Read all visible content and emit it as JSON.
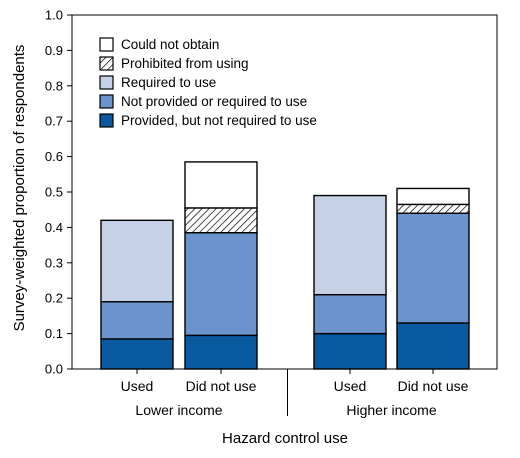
{
  "chart_data": {
    "type": "bar",
    "stacked": true,
    "xlabel": "Hazard control use",
    "ylabel": "Survey-weighted proportion of respondents",
    "ylim": [
      0,
      1.0
    ],
    "yticks": [
      "0.0",
      "0.1",
      "0.2",
      "0.3",
      "0.4",
      "0.5",
      "0.6",
      "0.7",
      "0.8",
      "0.9",
      "1.0"
    ],
    "groups": [
      "Lower income",
      "Higher income"
    ],
    "categories": [
      "Used",
      "Did not use",
      "Used",
      "Did not use"
    ],
    "series": [
      {
        "name": "Provided, but not required to use",
        "color": "#0a5aa0",
        "pattern": "solid",
        "values": [
          0.085,
          0.095,
          0.1,
          0.13
        ]
      },
      {
        "name": "Not provided or required to use",
        "color": "#6b93cc",
        "pattern": "solid",
        "values": [
          0.105,
          0.29,
          0.11,
          0.31
        ]
      },
      {
        "name": "Required to use",
        "color": "#c6d1e8",
        "pattern": "solid",
        "values": [
          0.23,
          0.0,
          0.28,
          0.0
        ]
      },
      {
        "name": "Prohibited from using",
        "color": "#ffffff",
        "pattern": "hatch",
        "values": [
          0.0,
          0.07,
          0.0,
          0.025
        ]
      },
      {
        "name": "Could not obtain",
        "color": "#ffffff",
        "pattern": "solid",
        "values": [
          0.0,
          0.13,
          0.0,
          0.045
        ]
      }
    ],
    "legend_order": [
      "Could not obtain",
      "Prohibited from using",
      "Required to use",
      "Not provided or required to use",
      "Provided, but not required to use"
    ],
    "legend_position": "top-left",
    "grid": false
  }
}
